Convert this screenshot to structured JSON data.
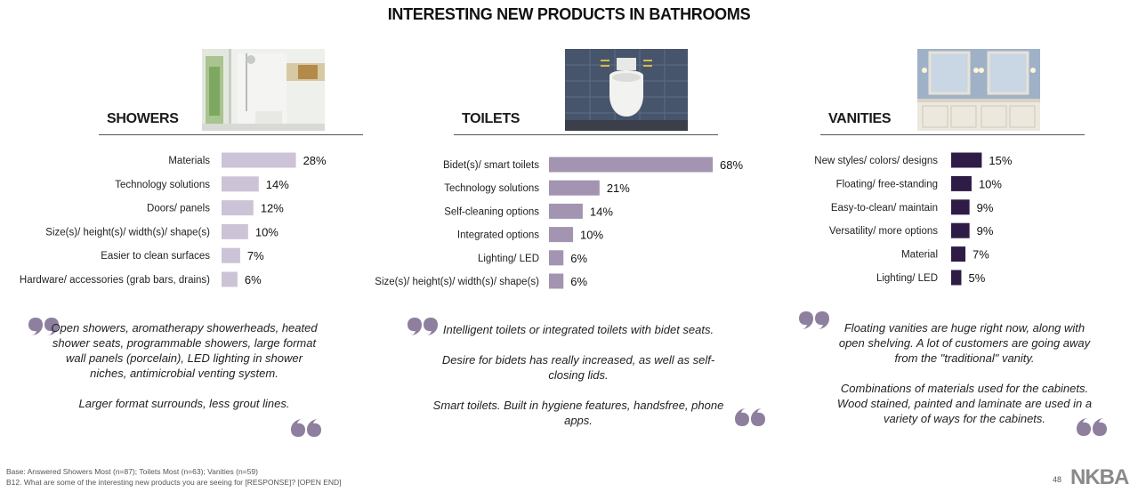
{
  "title": "INTERESTING NEW PRODUCTS IN BATHROOMS",
  "colors": {
    "showers_bar": "#cdc3d6",
    "toilets_bar": "#a394b2",
    "vanities_bar": "#2e1c46",
    "quote_mark": "#8e7f9f",
    "rule": "#555555"
  },
  "sections": [
    {
      "title": "SHOWERS",
      "image_icon": "shower-photo",
      "quotes": [
        "Open showers, aromatherapy showerheads, heated shower seats, programmable showers, large format wall panels (porcelain), LED lighting in shower niches, antimicrobial venting system.",
        "Larger format surrounds, less grout lines."
      ]
    },
    {
      "title": "TOILETS",
      "image_icon": "toilet-photo",
      "quotes": [
        "Intelligent toilets or integrated toilets with bidet seats.",
        "Desire for bidets has really increased, as well as self-closing lids.",
        "Smart toilets. Built in hygiene features, handsfree, phone apps."
      ]
    },
    {
      "title": "VANITIES",
      "image_icon": "vanity-photo",
      "quotes": [
        "Floating vanities are huge right now, along with open shelving. A lot of customers are going away from the \"traditional\" vanity.",
        "Combinations of materials used for the cabinets. Wood stained, painted and laminate are used in a variety of ways for the cabinets."
      ]
    }
  ],
  "chart_data": [
    {
      "type": "bar",
      "orientation": "horizontal",
      "title": "SHOWERS",
      "categories": [
        "Materials",
        "Technology solutions",
        "Doors/ panels",
        "Size(s)/ height(s)/ width(s)/ shape(s)",
        "Easier to clean surfaces",
        "Hardware/ accessories (grab bars, drains)"
      ],
      "values": [
        28,
        14,
        12,
        10,
        7,
        6
      ],
      "value_labels": [
        "28%",
        "14%",
        "12%",
        "10%",
        "7%",
        "6%"
      ],
      "unit": "%",
      "xlim": [
        0,
        68
      ],
      "grid": false
    },
    {
      "type": "bar",
      "orientation": "horizontal",
      "title": "TOILETS",
      "categories": [
        "Bidet(s)/ smart toilets",
        "Technology solutions",
        "Self-cleaning options",
        "Integrated options",
        "Lighting/ LED",
        "Size(s)/ height(s)/ width(s)/ shape(s)"
      ],
      "values": [
        68,
        21,
        14,
        10,
        6,
        6
      ],
      "value_labels": [
        "68%",
        "21%",
        "14%",
        "10%",
        "6%",
        "6%"
      ],
      "unit": "%",
      "xlim": [
        0,
        68
      ],
      "grid": false
    },
    {
      "type": "bar",
      "orientation": "horizontal",
      "title": "VANITIES",
      "categories": [
        "New styles/ colors/ designs",
        "Floating/ free-standing",
        "Easy-to-clean/ maintain",
        "Versatility/ more options",
        "Material",
        "Lighting/ LED"
      ],
      "values": [
        15,
        10,
        9,
        9,
        7,
        5
      ],
      "value_labels": [
        "15%",
        "10%",
        "9%",
        "9%",
        "7%",
        "5%"
      ],
      "unit": "%",
      "xlim": [
        0,
        68
      ],
      "grid": false
    }
  ],
  "footer": {
    "base": "Base:  Answered Showers Most (n=87); Toilets Most (n=63);  Vanities (n=59)",
    "question": "B12.  What are some of the interesting new products you are seeing for [RESPONSE]? [OPEN END]"
  },
  "page_number": "48",
  "logo_text": "NKBA"
}
